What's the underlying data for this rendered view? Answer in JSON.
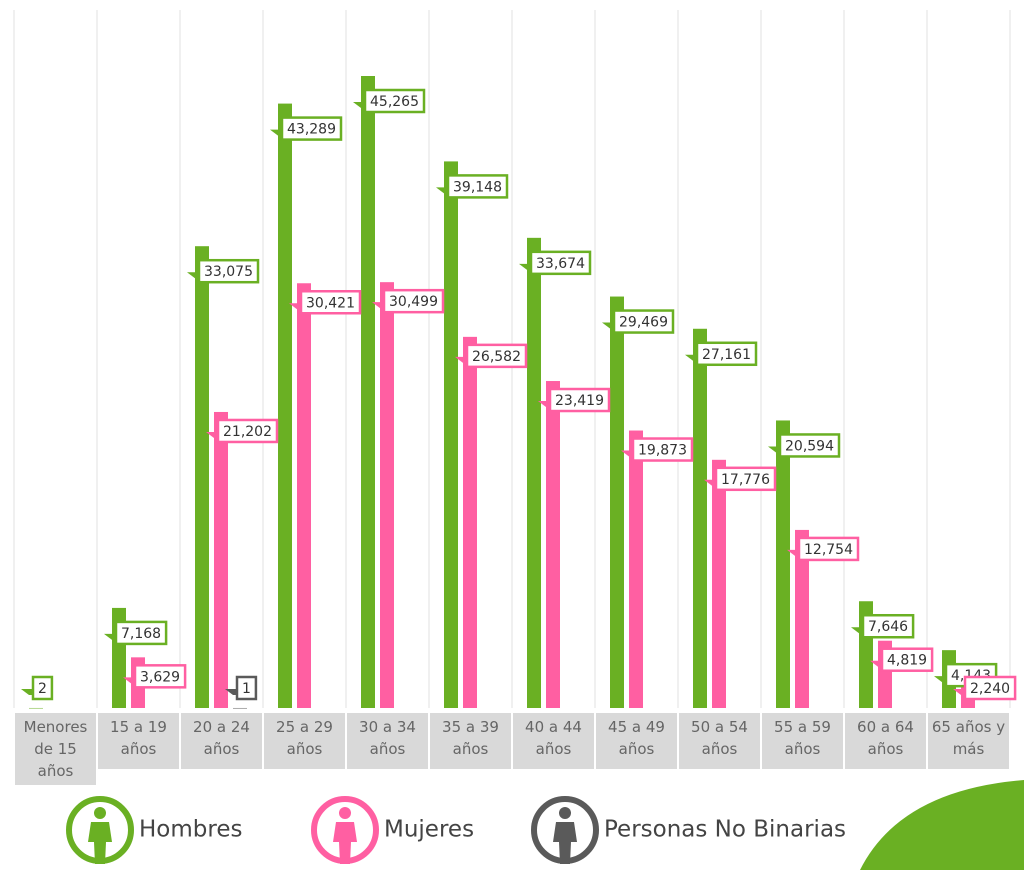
{
  "chart_data": {
    "type": "bar",
    "categories": [
      "Menores de 15 años",
      "15 a 19 años",
      "20 a 24 años",
      "25 a 29 años",
      "30 a 34 años",
      "35 a 39 años",
      "40 a 44 años",
      "45 a 49 años",
      "50 a 54 años",
      "55 a 59 años",
      "60 a 64 años",
      "65 años y más"
    ],
    "series": [
      {
        "name": "Hombres",
        "color": "#6ab023",
        "values": [
          2,
          7168,
          33075,
          43289,
          45265,
          39148,
          33674,
          29469,
          27161,
          20594,
          7646,
          4143
        ],
        "value_labels": [
          "2",
          "7,168",
          "33,075",
          "43,289",
          "45,265",
          "39,148",
          "33,674",
          "29,469",
          "27,161",
          "20,594",
          "7,646",
          "4,143"
        ]
      },
      {
        "name": "Mujeres",
        "color": "#ff5fa2",
        "values": [
          null,
          3629,
          21202,
          30421,
          30499,
          26582,
          23419,
          19873,
          17776,
          12754,
          4819,
          2240
        ],
        "value_labels": [
          null,
          "3,629",
          "21,202",
          "30,421",
          "30,499",
          "26,582",
          "23,419",
          "19,873",
          "17,776",
          "12,754",
          "4,819",
          "2,240"
        ]
      },
      {
        "name": "Personas No Binarias",
        "color": "#5a5a5a",
        "values": [
          null,
          null,
          1,
          null,
          null,
          null,
          null,
          null,
          null,
          null,
          null,
          null
        ],
        "value_labels": [
          null,
          null,
          "1",
          null,
          null,
          null,
          null,
          null,
          null,
          null,
          null,
          null
        ]
      }
    ],
    "grid": true
  }
}
